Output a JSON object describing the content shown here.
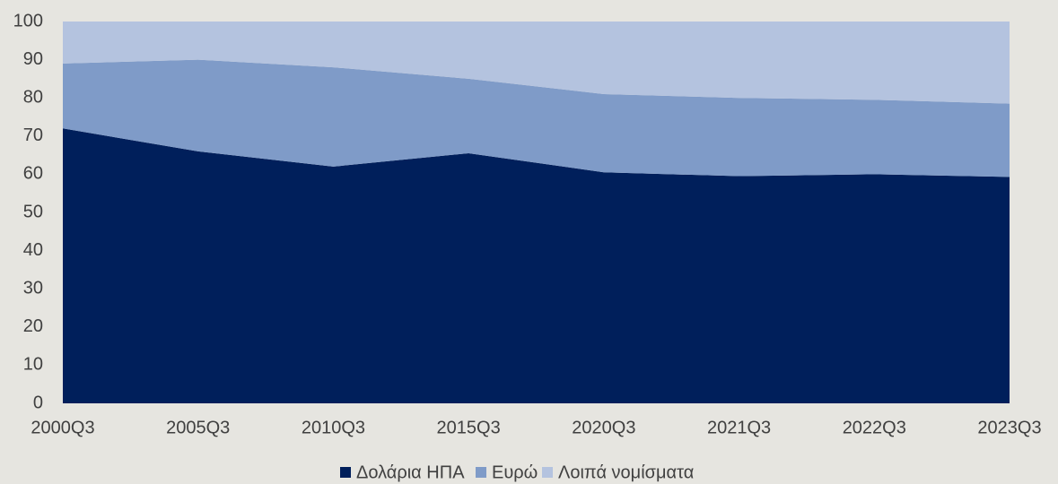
{
  "chart_data": {
    "type": "stacked_area",
    "categories": [
      "2000Q3",
      "2005Q3",
      "2010Q3",
      "2015Q3",
      "2020Q3",
      "2021Q3",
      "2022Q3",
      "2023Q3"
    ],
    "series": [
      {
        "name": "Δολάρια ΗΠΑ",
        "color": "#001f5b",
        "values": [
          72,
          66,
          62,
          65.5,
          60.5,
          59.5,
          60,
          59.3
        ]
      },
      {
        "name": "Ευρώ",
        "color": "#7f9bc8",
        "values": [
          17,
          24,
          26,
          19.5,
          20.5,
          20.5,
          19.5,
          19.2
        ]
      },
      {
        "name": "Λοιπά νομίσματα",
        "color": "#b4c3df",
        "values": [
          11,
          10,
          12,
          15,
          19,
          20,
          20.5,
          21.5
        ]
      }
    ],
    "ylim": [
      0,
      100
    ],
    "yticks": [
      0,
      10,
      20,
      30,
      40,
      50,
      60,
      70,
      80,
      90,
      100
    ],
    "legend": "bottom"
  }
}
